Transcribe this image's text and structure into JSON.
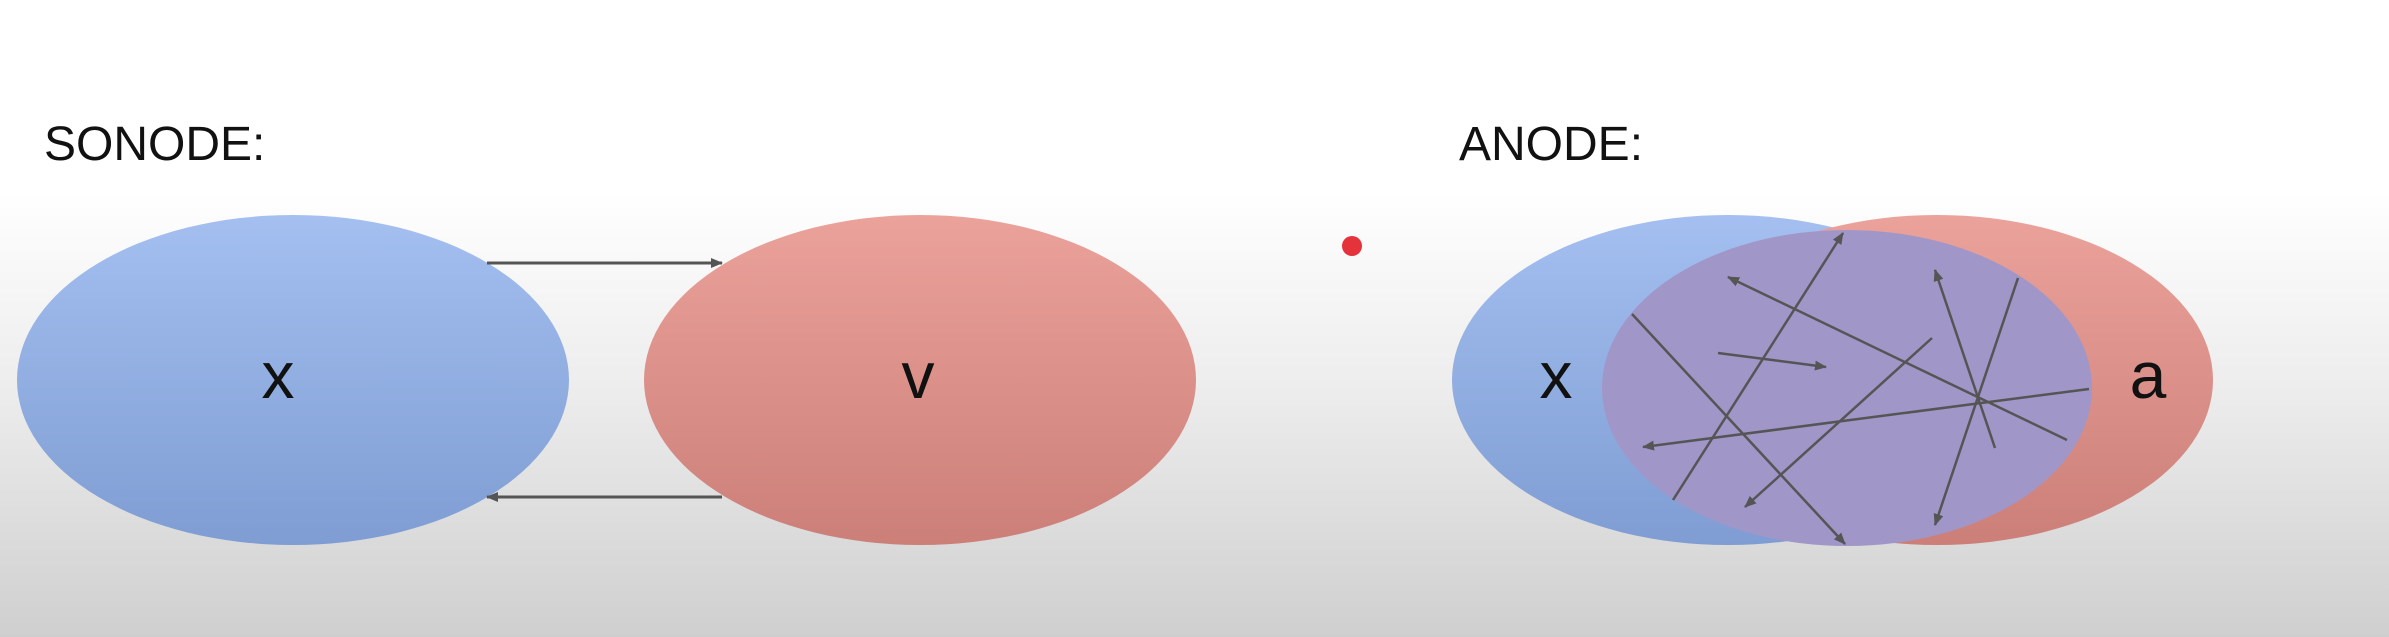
{
  "left_panel": {
    "heading": "SONODE:",
    "nodes": [
      {
        "label": "x",
        "color_top": "#a4bff0",
        "color_bottom": "#7f9dd3"
      },
      {
        "label": "v",
        "color_top": "#eba29b",
        "color_bottom": "#cb7f78"
      }
    ]
  },
  "right_panel": {
    "heading": "ANODE:",
    "nodes": [
      {
        "label": "x",
        "color_top": "#a4bff0",
        "color_bottom": "#7f9dd3"
      },
      {
        "label": "a",
        "color_top": "#eba29b",
        "color_bottom": "#cb7f78"
      }
    ],
    "overlap_color": "#a196c8"
  },
  "pointer_color": "#e5333b",
  "arrow_color": "#555555"
}
